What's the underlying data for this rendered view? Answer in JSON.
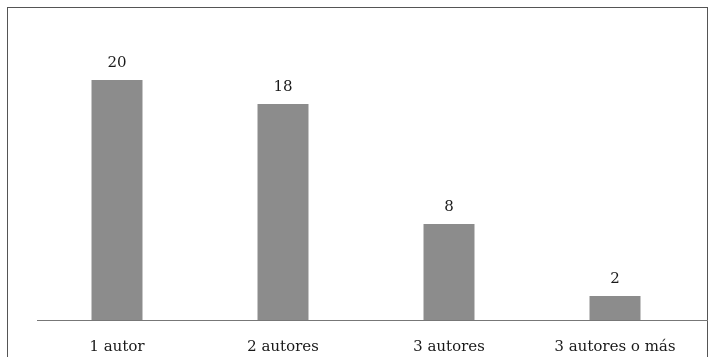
{
  "chart_data": {
    "type": "bar",
    "title": "",
    "xlabel": "",
    "ylabel": "",
    "categories": [
      "1 autor",
      "2 autores",
      "3 autores",
      "3 autores o más"
    ],
    "values": [
      20,
      18,
      8,
      2
    ],
    "data_labels": [
      "20",
      "18",
      "8",
      "2"
    ],
    "ylim": [
      0,
      20
    ],
    "grid": false,
    "legend": "none",
    "bar_color": "#8c8c8c",
    "axis_color": "#777777"
  }
}
